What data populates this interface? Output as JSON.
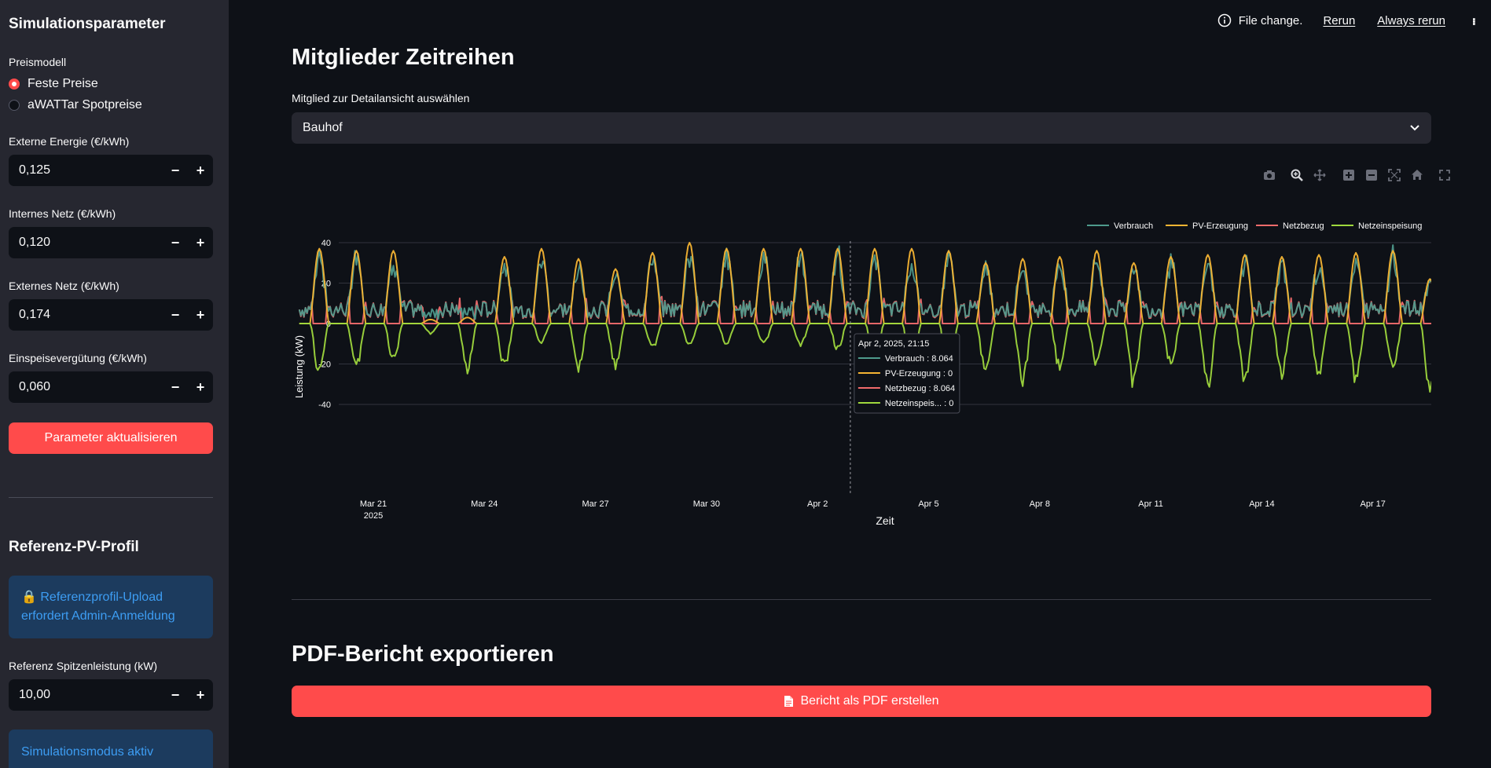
{
  "sidebar": {
    "title": "Simulationsparameter",
    "preismodell_label": "Preismodell",
    "radio_options": [
      {
        "label": "Feste Preise",
        "selected": true
      },
      {
        "label": "aWATTar Spotpreise",
        "selected": false
      }
    ],
    "inputs": [
      {
        "label": "Externe Energie (€/kWh)",
        "value": "0,125"
      },
      {
        "label": "Internes Netz (€/kWh)",
        "value": "0,120"
      },
      {
        "label": "Externes Netz (€/kWh)",
        "value": "0,174"
      },
      {
        "label": "Einspeisevergütung (€/kWh)",
        "value": "0,060"
      }
    ],
    "update_button": "Parameter aktualisieren",
    "ref_title": "Referenz-PV-Profil",
    "ref_info": "🔒 Referenzprofil-Upload erfordert Admin-Anmeldung",
    "ref_peak_label": "Referenz Spitzenleistung (kW)",
    "ref_peak_value": "10,00",
    "sim_info": "Simulationsmodus aktiv",
    "step_minus": "−",
    "step_plus": "+"
  },
  "topbar": {
    "status": "File change.",
    "rerun": "Rerun",
    "always_rerun": "Always rerun"
  },
  "main": {
    "heading": "Mitglieder Zeitreihen",
    "select_label": "Mitglied zur Detailansicht auswählen",
    "select_value": "Bauhof",
    "export_heading": "PDF-Bericht exportieren",
    "export_button": "Bericht als PDF erstellen"
  },
  "chart_data": {
    "type": "line",
    "xlabel": "Zeit",
    "ylabel": "Leistung (kW)",
    "ylim": [
      -40,
      45
    ],
    "yticks": [
      40,
      20,
      0,
      -20,
      -40
    ],
    "x_range": [
      "2025-03-19",
      "2025-04-20"
    ],
    "x_ticks": [
      {
        "label": "Mar 21",
        "sub": "2025",
        "day": 2
      },
      {
        "label": "Mar 24",
        "sub": "",
        "day": 5
      },
      {
        "label": "Mar 27",
        "sub": "",
        "day": 8
      },
      {
        "label": "Mar 30",
        "sub": "",
        "day": 11
      },
      {
        "label": "Apr 2",
        "sub": "",
        "day": 14
      },
      {
        "label": "Apr 5",
        "sub": "",
        "day": 17
      },
      {
        "label": "Apr 8",
        "sub": "",
        "day": 20
      },
      {
        "label": "Apr 11",
        "sub": "",
        "day": 23
      },
      {
        "label": "Apr 14",
        "sub": "",
        "day": 26
      },
      {
        "label": "Apr 17",
        "sub": "",
        "day": 29
      }
    ],
    "grid": true,
    "legend_position": "top-right",
    "series": [
      {
        "name": "Verbrauch",
        "color": "#4e9a8c"
      },
      {
        "name": "PV-Erzeugung",
        "color": "#f5b433"
      },
      {
        "name": "Netzbezug",
        "color": "#f06b6b"
      },
      {
        "name": "Netzeinspeisung",
        "color": "#9fd83d"
      }
    ],
    "pv_daily_peaks": [
      37,
      36,
      36,
      2,
      3,
      33,
      37,
      32,
      27,
      35,
      40,
      37,
      37,
      37,
      37,
      37,
      37,
      36,
      30,
      32,
      33,
      36,
      30,
      33,
      34,
      34,
      33,
      34,
      35,
      36,
      22,
      14
    ],
    "net_feed_daily_min": [
      -24,
      -21,
      -18,
      -5,
      -22,
      -22,
      -9,
      -21,
      -20,
      -12,
      -11,
      -10,
      -10,
      -10,
      -12,
      -18,
      -24,
      -27,
      -24,
      -28,
      -22,
      -19,
      -29,
      -20,
      -29,
      -27,
      -25,
      -24,
      -27,
      -23,
      -32,
      -22
    ],
    "hover": {
      "title": "Apr 2, 2025, 21:15",
      "day": 14.885,
      "rows": [
        {
          "name": "Verbrauch",
          "value": "8.064"
        },
        {
          "name": "PV-Erzeugung",
          "value": "0"
        },
        {
          "name": "Netzbezug",
          "value": "8.064"
        },
        {
          "name": "Netzeinspeis...",
          "value": "0"
        }
      ]
    },
    "modebar_icons": [
      "camera-icon",
      "zoom-icon",
      "pan-icon",
      "zoom-in-icon",
      "zoom-out-icon",
      "autoscale-icon",
      "home-icon",
      "fullscreen-icon"
    ]
  }
}
